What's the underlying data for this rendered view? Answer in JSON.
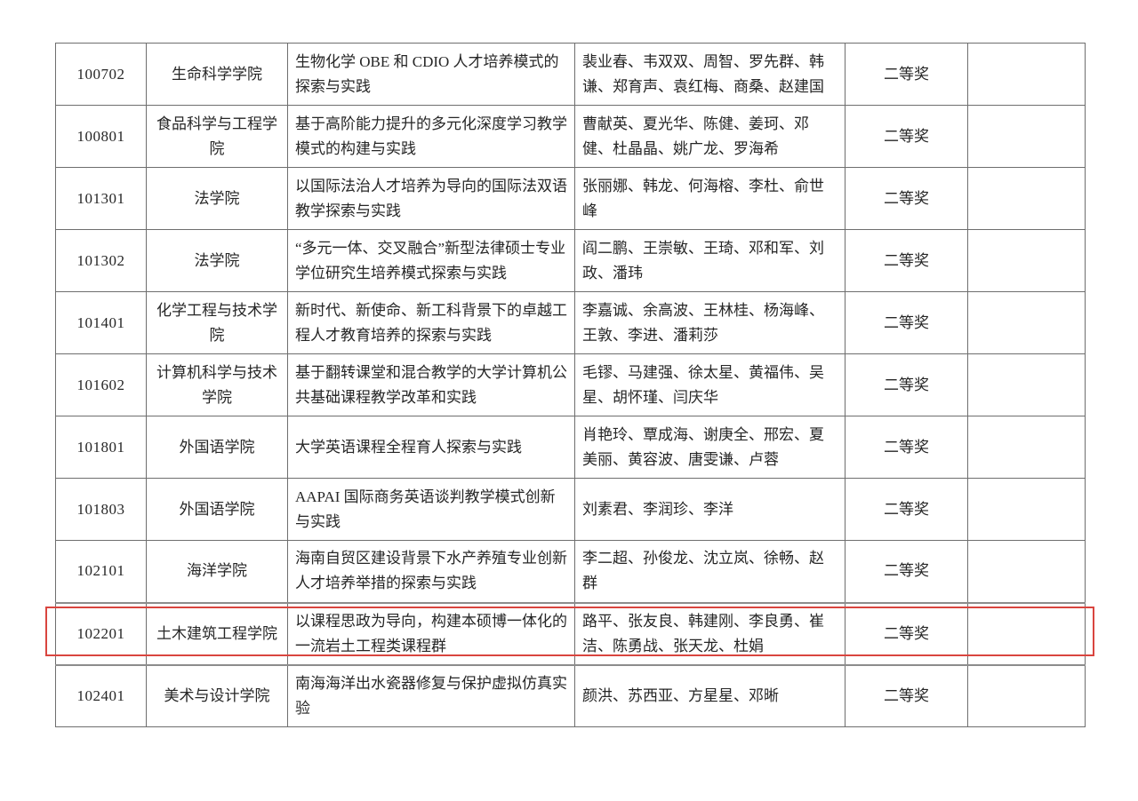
{
  "document": {
    "background_color": "#ffffff",
    "text_color": "#262626",
    "grid_color": "#6e6e6e",
    "highlight_border_color": "#d9453f"
  },
  "table": {
    "rows": [
      {
        "code": "100702",
        "college": "生命科学学院",
        "title": "生物化学 OBE 和 CDIO 人才培养模式的探索与实践",
        "members": "裴业春、韦双双、周智、罗先群、韩谦、郑育声、袁红梅、商桑、赵建国",
        "award": "二等奖",
        "extra": "",
        "highlighted": false
      },
      {
        "code": "100801",
        "college": "食品科学与工程学院",
        "title": "基于高阶能力提升的多元化深度学习教学模式的构建与实践",
        "members": "曹献英、夏光华、陈健、姜珂、邓健、杜晶晶、姚广龙、罗海希",
        "award": "二等奖",
        "extra": "",
        "highlighted": false
      },
      {
        "code": "101301",
        "college": "法学院",
        "title": "以国际法治人才培养为导向的国际法双语教学探索与实践",
        "members": "张丽娜、韩龙、何海榕、李杜、俞世峰",
        "award": "二等奖",
        "extra": "",
        "highlighted": false
      },
      {
        "code": "101302",
        "college": "法学院",
        "title": "“多元一体、交叉融合”新型法律硕士专业学位研究生培养模式探索与实践",
        "members": "阎二鹏、王崇敏、王琦、邓和军、刘政、潘玮",
        "award": "二等奖",
        "extra": "",
        "highlighted": false
      },
      {
        "code": "101401",
        "college": "化学工程与技术学院",
        "title": "新时代、新使命、新工科背景下的卓越工程人才教育培养的探索与实践",
        "members": "李嘉诚、余高波、王林桂、杨海峰、王敦、李进、潘莉莎",
        "award": "二等奖",
        "extra": "",
        "highlighted": false
      },
      {
        "code": "101602",
        "college": "计算机科学与技术学院",
        "title": "基于翻转课堂和混合教学的大学计算机公共基础课程教学改革和实践",
        "members": "毛镠、马建强、徐太星、黄福伟、吴星、胡怀瑾、闫庆华",
        "award": "二等奖",
        "extra": "",
        "highlighted": false
      },
      {
        "code": "101801",
        "college": "外国语学院",
        "title": "大学英语课程全程育人探索与实践",
        "members": "肖艳玲、覃成海、谢庚全、邢宏、夏美丽、黄容波、唐雯谦、卢蓉",
        "award": "二等奖",
        "extra": "",
        "highlighted": false
      },
      {
        "code": "101803",
        "college": "外国语学院",
        "title": "AAPAI 国际商务英语谈判教学模式创新与实践",
        "members": "刘素君、李润珍、李洋",
        "award": "二等奖",
        "extra": "",
        "highlighted": false
      },
      {
        "code": "102101",
        "college": "海洋学院",
        "title": "海南自贸区建设背景下水产养殖专业创新人才培养举措的探索与实践",
        "members": "李二超、孙俊龙、沈立岚、徐畅、赵群",
        "award": "二等奖",
        "extra": "",
        "highlighted": false
      },
      {
        "code": "102201",
        "college": "土木建筑工程学院",
        "title": "以课程思政为导向，构建本硕博一体化的一流岩土工程类课程群",
        "members": "路平、张友良、韩建刚、李良勇、崔洁、陈勇战、张天龙、杜娟",
        "award": "二等奖",
        "extra": "",
        "highlighted": true
      },
      {
        "code": "102401",
        "college": "美术与设计学院",
        "title": "南海海洋出水瓷器修复与保护虚拟仿真实验",
        "members": "颜洪、苏西亚、方星星、邓晰",
        "award": "二等奖",
        "extra": "",
        "highlighted": false
      }
    ]
  }
}
